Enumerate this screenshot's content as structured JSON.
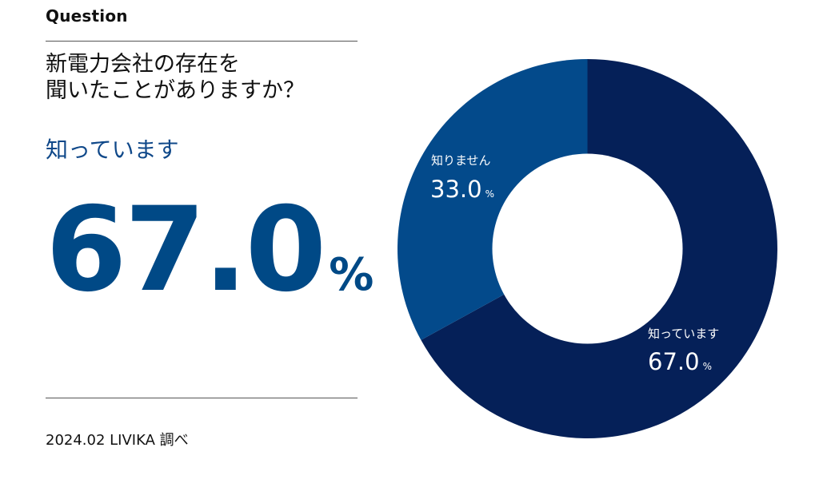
{
  "header": {
    "kicker": "Question",
    "question_line1": "新電力会社の存在を",
    "question_line2": "聞いたことがありますか？"
  },
  "highlight": {
    "label": "知っています",
    "value": "67.0",
    "unit": "%"
  },
  "source": "2024.02 LIVIKA 調べ",
  "colors": {
    "accent": "#004986",
    "dark_navy": "#052058",
    "mid_blue": "#034a8b",
    "text": "#111111"
  },
  "chart_data": {
    "type": "pie",
    "donut": true,
    "categories": [
      "知っています",
      "知りません"
    ],
    "values": [
      67.0,
      33.0
    ],
    "unit": "%",
    "colors": [
      "#052058",
      "#034a8b"
    ],
    "start": "12 o'clock, clockwise"
  }
}
